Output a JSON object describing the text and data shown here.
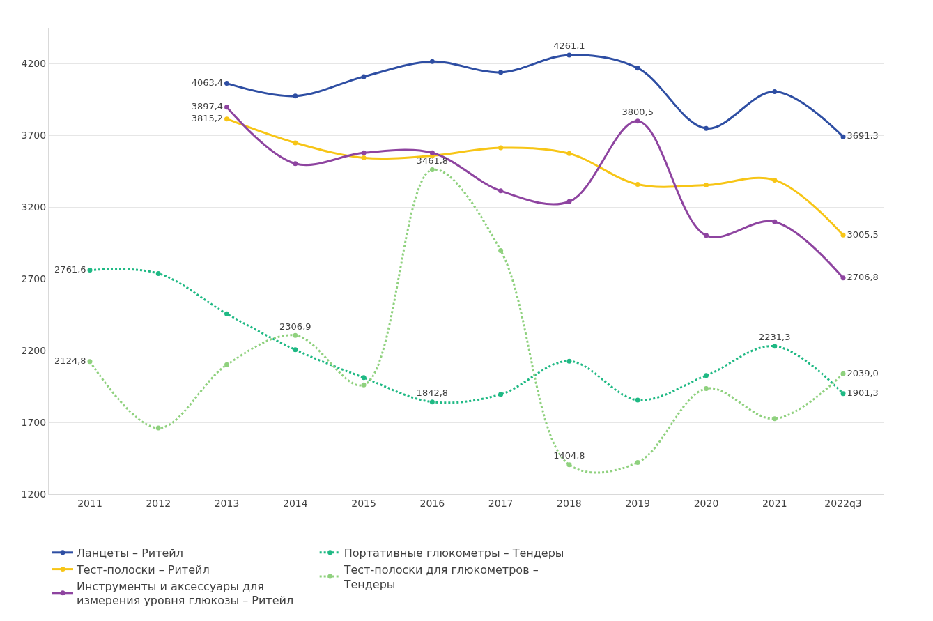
{
  "chart_data": {
    "type": "line",
    "categories": [
      "2011",
      "2012",
      "2013",
      "2014",
      "2015",
      "2016",
      "2017",
      "2018",
      "2019",
      "2020",
      "2021",
      "2022q3"
    ],
    "ylim": [
      1200,
      4450
    ],
    "yticks": [
      1200,
      1700,
      2200,
      2700,
      3200,
      3700,
      4200
    ],
    "grid": "y",
    "legend": "bottom",
    "marker": "circle",
    "series": [
      {
        "name": "Ланцеты – Ритейл",
        "color": "#2e4ea3",
        "line_style": "solid",
        "values": [
          null,
          null,
          4063.4,
          3975,
          4110,
          4215,
          4140,
          4261.1,
          4170,
          3749,
          4005,
          3691.3
        ],
        "value_labels": [
          null,
          null,
          "4063,4",
          null,
          null,
          null,
          null,
          "4261,1",
          null,
          null,
          null,
          "3691,3"
        ]
      },
      {
        "name": "Тест-полоски – Ритейл",
        "color": "#f7c516",
        "line_style": "solid",
        "values": [
          null,
          null,
          3815.2,
          3649,
          3544,
          3559,
          3614,
          3574,
          3359,
          3354,
          3389,
          3005.5
        ],
        "value_labels": [
          null,
          null,
          "3815,2",
          null,
          null,
          null,
          null,
          null,
          null,
          null,
          null,
          "3005,5"
        ]
      },
      {
        "name": "Инструменты и аксессуары для измерения уровня глюкозы – Ритейл",
        "color": "#8e44a0",
        "line_style": "solid",
        "values": [
          null,
          null,
          3897.4,
          3504,
          3579,
          3579,
          3314,
          3239,
          3800.5,
          3003,
          3098,
          2706.8
        ],
        "value_labels": [
          null,
          null,
          "3897,4",
          null,
          null,
          null,
          null,
          null,
          "3800,5",
          null,
          null,
          "2706,8"
        ]
      },
      {
        "name": "Портативные глюкометры – Тендеры",
        "color": "#1fb984",
        "line_style": "dotted",
        "values": [
          2761.6,
          2738,
          2457,
          2207,
          2012,
          1842.8,
          1896,
          2127,
          1856,
          2027,
          2231.3,
          1901.3
        ],
        "value_labels": [
          "2761,6",
          null,
          null,
          null,
          null,
          "1842,8",
          null,
          null,
          null,
          null,
          "2231,3",
          "1901,3"
        ]
      },
      {
        "name": "Тест-полоски для глюкометров – Тендеры",
        "color": "#8fd17e",
        "line_style": "dotted",
        "values": [
          2124.8,
          1661,
          2102,
          2306.9,
          1961,
          3461.8,
          2898,
          1404.8,
          1421,
          1936,
          1726,
          2039.0
        ],
        "value_labels": [
          "2124,8",
          null,
          null,
          "2306,9",
          null,
          "3461,8",
          null,
          "1404,8",
          null,
          null,
          null,
          "2039,0"
        ]
      }
    ]
  }
}
